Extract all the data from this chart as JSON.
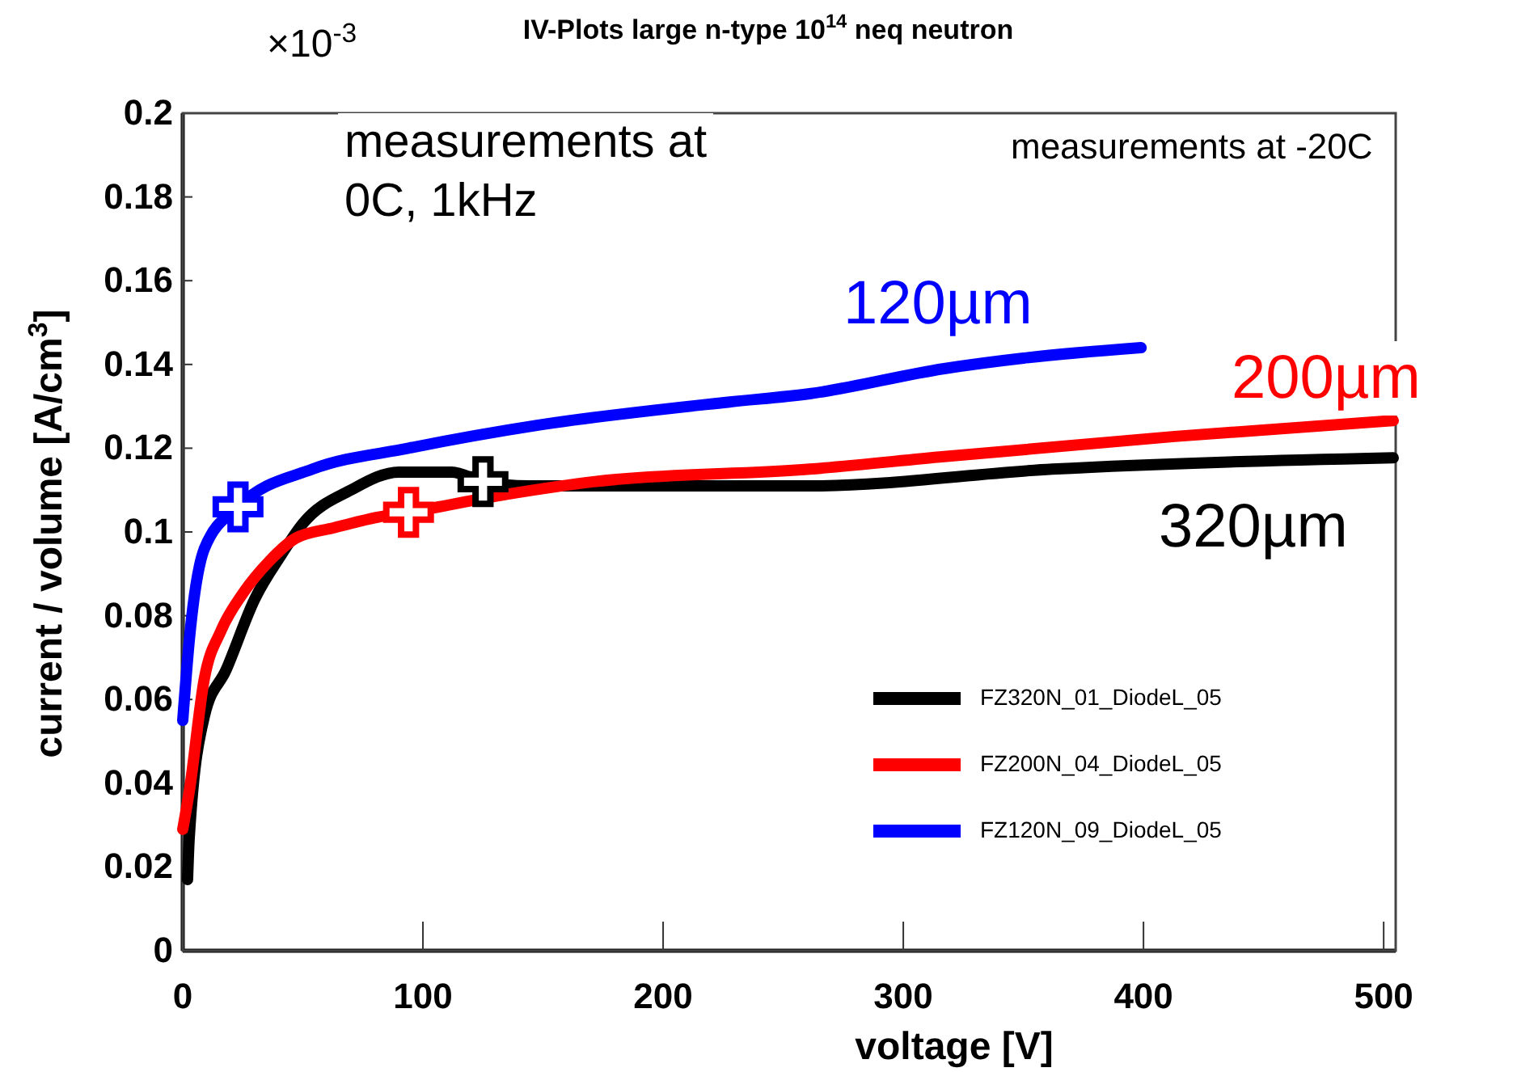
{
  "chart_data": {
    "type": "line",
    "title": "IV-Plots large n-type 10$^{14}$ neq neutron",
    "xlabel": "voltage [V]",
    "ylabel": "current / volume [A/cm$^{3}$]",
    "xlim": [
      0,
      505
    ],
    "ylim": [
      0,
      0.2
    ],
    "xticks": [
      0,
      100,
      200,
      300,
      400,
      500
    ],
    "yticks": [
      0,
      0.02,
      0.04,
      0.06,
      0.08,
      0.1,
      0.12,
      0.14,
      0.16,
      0.18,
      0.2
    ],
    "grid": false,
    "legend": "bottom right",
    "line_style": "solid",
    "annotations": [
      "320µm",
      "200µm",
      "120µm",
      "×10$^{-3}$",
      "measurements at\n0C, 1kHz",
      "measurements at -20C"
    ],
    "series": [
      {
        "name": "FZ320N_01_DiodeL_05",
        "color": "#000000",
        "x": [
          2,
          2.7,
          9,
          18,
          30,
          41,
          50,
          70,
          90,
          112,
          125,
          144,
          227,
          261,
          362,
          504
        ],
        "values": [
          0.017,
          0.027,
          0.056,
          0.067,
          0.084,
          0.0945,
          0.102,
          0.11,
          0.1143,
          0.1143,
          0.112,
          0.111,
          0.111,
          0.111,
          0.115,
          0.1177
        ]
      },
      {
        "name": "FZ200N_04_DiodeL_05",
        "color": "#ff0000",
        "x": [
          0,
          2.7,
          9,
          16,
          25,
          36,
          47,
          63,
          81,
          94,
          135,
          171,
          261,
          317,
          413,
          504
        ],
        "values": [
          0.029,
          0.038,
          0.065,
          0.0765,
          0.0853,
          0.093,
          0.0985,
          0.101,
          0.1035,
          0.1047,
          0.109,
          0.112,
          0.115,
          0.118,
          0.1228,
          0.1266
        ]
      },
      {
        "name": "FZ120N_09_DiodeL_05",
        "color": "#0000ff",
        "x": [
          0,
          2.7,
          9,
          23,
          54,
          94,
          148,
          227,
          261,
          317,
          350,
          399
        ],
        "values": [
          0.055,
          0.074,
          0.096,
          0.106,
          0.115,
          0.12,
          0.1255,
          0.131,
          0.133,
          0.139,
          0.1415,
          0.144
        ]
      },
      {
        "type": "scatter",
        "marker": "cross",
        "color": "#000000",
        "x": [
          125
        ],
        "values": [
          0.112
        ]
      },
      {
        "type": "scatter",
        "marker": "cross",
        "color": "#ff0000",
        "x": [
          94
        ],
        "values": [
          0.1047
        ]
      },
      {
        "type": "scatter",
        "marker": "cross",
        "color": "#0000ff",
        "x": [
          23
        ],
        "values": [
          0.106
        ]
      }
    ]
  }
}
